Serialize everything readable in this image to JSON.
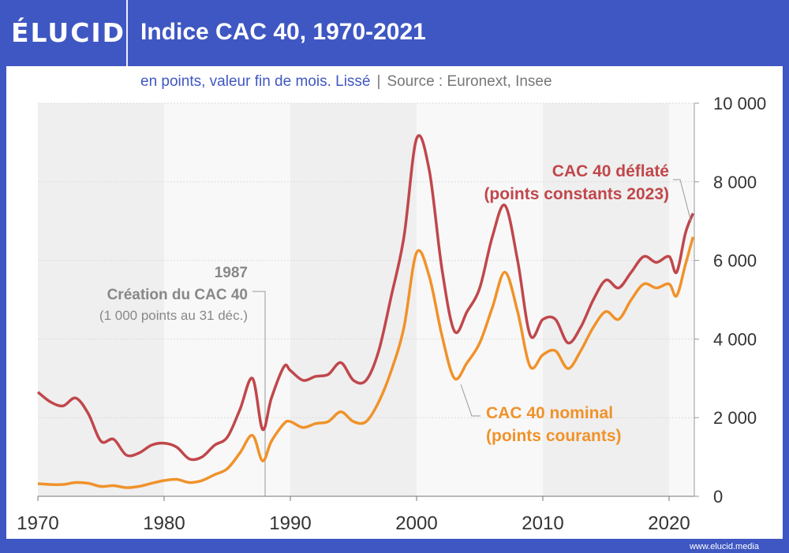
{
  "header": {
    "logo": "ÉLUCID",
    "title": "Indice CAC 40, 1970-2021",
    "subtitle": "en points, valeur fin de mois. Lissé",
    "source": "Source : Euronext, Insee"
  },
  "footer": {
    "url": "www.elucid.media"
  },
  "colors": {
    "brand": "#3f57c2",
    "deflated": "#c0474b",
    "nominal": "#f0922a"
  },
  "annotations": {
    "year": "1987",
    "title": "Création du CAC 40",
    "note": "(1 000 points au 31 déc.)"
  },
  "chart_data": {
    "type": "line",
    "xlim": [
      1970,
      2022
    ],
    "ylim": [
      0,
      10000
    ],
    "x_ticks": [
      "1970",
      "1980",
      "1990",
      "2000",
      "2010",
      "2020"
    ],
    "y_ticks": [
      "0",
      "2 000",
      "4 000",
      "6 000",
      "8 000",
      "10 000"
    ],
    "grid": true,
    "series": [
      {
        "name_line1": "CAC 40 déflaté",
        "name_line2": "(points constants 2023)",
        "color": "#c0474b",
        "points": [
          [
            1970,
            2650
          ],
          [
            1971,
            2400
          ],
          [
            1972,
            2300
          ],
          [
            1973,
            2500
          ],
          [
            1974,
            2100
          ],
          [
            1975,
            1400
          ],
          [
            1976,
            1450
          ],
          [
            1977,
            1050
          ],
          [
            1978,
            1100
          ],
          [
            1979,
            1300
          ],
          [
            1980,
            1350
          ],
          [
            1981,
            1250
          ],
          [
            1982,
            950
          ],
          [
            1983,
            1000
          ],
          [
            1984,
            1300
          ],
          [
            1985,
            1500
          ],
          [
            1986,
            2200
          ],
          [
            1987,
            3000
          ],
          [
            1987.8,
            1700
          ],
          [
            1988.5,
            2500
          ],
          [
            1989.5,
            3300
          ],
          [
            1990,
            3200
          ],
          [
            1991,
            2950
          ],
          [
            1992,
            3050
          ],
          [
            1993,
            3100
          ],
          [
            1994,
            3400
          ],
          [
            1995,
            2950
          ],
          [
            1996,
            2950
          ],
          [
            1997,
            3700
          ],
          [
            1998,
            5100
          ],
          [
            1999,
            6600
          ],
          [
            2000,
            9100
          ],
          [
            2001,
            8300
          ],
          [
            2002,
            5800
          ],
          [
            2003,
            4200
          ],
          [
            2004,
            4700
          ],
          [
            2005,
            5300
          ],
          [
            2006,
            6600
          ],
          [
            2007,
            7400
          ],
          [
            2008,
            6000
          ],
          [
            2009,
            4100
          ],
          [
            2010,
            4500
          ],
          [
            2011,
            4500
          ],
          [
            2012,
            3900
          ],
          [
            2013,
            4300
          ],
          [
            2014,
            5000
          ],
          [
            2015,
            5500
          ],
          [
            2016,
            5300
          ],
          [
            2017,
            5700
          ],
          [
            2018,
            6100
          ],
          [
            2019,
            5950
          ],
          [
            2020,
            6100
          ],
          [
            2020.6,
            5700
          ],
          [
            2021.3,
            6700
          ],
          [
            2021.9,
            7200
          ]
        ]
      },
      {
        "name_line1": "CAC 40 nominal",
        "name_line2": "(points courants)",
        "color": "#f0922a",
        "points": [
          [
            1970,
            320
          ],
          [
            1971,
            300
          ],
          [
            1972,
            300
          ],
          [
            1973,
            350
          ],
          [
            1974,
            330
          ],
          [
            1975,
            250
          ],
          [
            1976,
            270
          ],
          [
            1977,
            220
          ],
          [
            1978,
            250
          ],
          [
            1979,
            330
          ],
          [
            1980,
            400
          ],
          [
            1981,
            430
          ],
          [
            1982,
            350
          ],
          [
            1983,
            400
          ],
          [
            1984,
            550
          ],
          [
            1985,
            700
          ],
          [
            1986,
            1100
          ],
          [
            1987,
            1550
          ],
          [
            1987.8,
            900
          ],
          [
            1988.5,
            1400
          ],
          [
            1989.5,
            1850
          ],
          [
            1990,
            1900
          ],
          [
            1991,
            1750
          ],
          [
            1992,
            1850
          ],
          [
            1993,
            1900
          ],
          [
            1994,
            2150
          ],
          [
            1995,
            1900
          ],
          [
            1996,
            1900
          ],
          [
            1997,
            2400
          ],
          [
            1998,
            3200
          ],
          [
            1999,
            4300
          ],
          [
            2000,
            6200
          ],
          [
            2001,
            5600
          ],
          [
            2002,
            4100
          ],
          [
            2003,
            3000
          ],
          [
            2004,
            3400
          ],
          [
            2005,
            3900
          ],
          [
            2006,
            4800
          ],
          [
            2007,
            5700
          ],
          [
            2008,
            4700
          ],
          [
            2009,
            3300
          ],
          [
            2010,
            3600
          ],
          [
            2011,
            3700
          ],
          [
            2012,
            3250
          ],
          [
            2013,
            3700
          ],
          [
            2014,
            4300
          ],
          [
            2015,
            4700
          ],
          [
            2016,
            4500
          ],
          [
            2017,
            5000
          ],
          [
            2018,
            5400
          ],
          [
            2019,
            5300
          ],
          [
            2020,
            5400
          ],
          [
            2020.6,
            5100
          ],
          [
            2021.3,
            5900
          ],
          [
            2021.9,
            6600
          ]
        ]
      }
    ]
  }
}
